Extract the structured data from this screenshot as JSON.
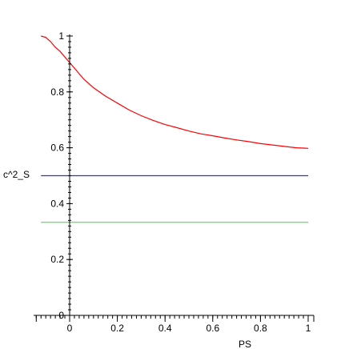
{
  "chart_data": {
    "type": "line",
    "title": "",
    "xlabel": "PS",
    "ylabel": "c^2_S",
    "xlim": [
      -0.15,
      1.02
    ],
    "ylim": [
      0,
      1
    ],
    "grid": false,
    "legend": "none",
    "x_ticks": [
      {
        "value": 0,
        "label": "0"
      },
      {
        "value": 0.2,
        "label": "0.2"
      },
      {
        "value": 0.4,
        "label": "0.4"
      },
      {
        "value": 0.6,
        "label": "0.6"
      },
      {
        "value": 0.8,
        "label": "0.8"
      },
      {
        "value": 1,
        "label": "1"
      }
    ],
    "y_ticks": [
      {
        "value": 0,
        "label": "0"
      },
      {
        "value": 0.2,
        "label": "0.2"
      },
      {
        "value": 0.4,
        "label": "0.4"
      },
      {
        "value": 0.6,
        "label": "0.6"
      },
      {
        "value": 0.8,
        "label": "0.8"
      },
      {
        "value": 1,
        "label": "1"
      }
    ],
    "series": [
      {
        "color": "#ff0000",
        "x": [
          -0.12,
          -0.1,
          -0.08,
          -0.06,
          -0.04,
          -0.02,
          0,
          0.02,
          0.04,
          0.06,
          0.1,
          0.15,
          0.2,
          0.25,
          0.3,
          0.35,
          0.4,
          0.45,
          0.5,
          0.55,
          0.6,
          0.65,
          0.7,
          0.75,
          0.8,
          0.85,
          0.9,
          0.95,
          1.0
        ],
        "y": [
          1.0,
          0.995,
          0.98,
          0.96,
          0.945,
          0.925,
          0.905,
          0.885,
          0.865,
          0.845,
          0.815,
          0.785,
          0.76,
          0.735,
          0.715,
          0.698,
          0.683,
          0.672,
          0.66,
          0.65,
          0.643,
          0.635,
          0.628,
          0.622,
          0.615,
          0.61,
          0.605,
          0.6,
          0.598
        ]
      },
      {
        "color": "#3333cc",
        "x": [
          -0.12,
          1.0
        ],
        "y": [
          0.5,
          0.5
        ]
      },
      {
        "color": "#33ee33",
        "x": [
          -0.12,
          1.0
        ],
        "y": [
          0.3333,
          0.3333
        ]
      }
    ]
  }
}
